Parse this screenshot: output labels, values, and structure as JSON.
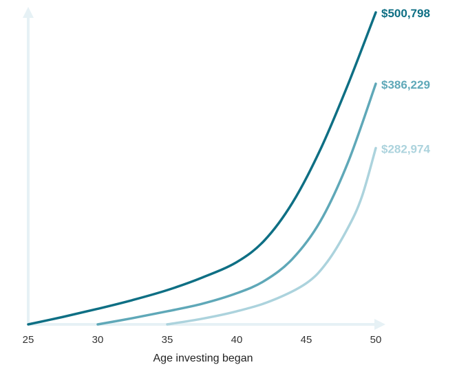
{
  "chart_data": {
    "type": "line",
    "title": "",
    "xlabel": "Age investing began",
    "ylabel": "",
    "xlim": [
      25,
      50
    ],
    "ylim": [
      0,
      500798
    ],
    "x_ticks": [
      "25",
      "30",
      "35",
      "40",
      "45",
      "50"
    ],
    "grid": false,
    "legend": "none",
    "series": [
      {
        "end_label": "$500,798",
        "color": "#0e6f84",
        "x": [
          25,
          27.5,
          30,
          32.5,
          35,
          37.5,
          40,
          42,
          44,
          46,
          48,
          50
        ],
        "values": [
          0,
          12000,
          25000,
          39000,
          55000,
          75000,
          100000,
          135000,
          195000,
          280000,
          385000,
          500798
        ]
      },
      {
        "end_label": "$386,229",
        "color": "#5fa8b8",
        "x": [
          30,
          32.5,
          35,
          37.5,
          40,
          42,
          44,
          46,
          48,
          50
        ],
        "values": [
          0,
          10000,
          21000,
          33000,
          50000,
          70000,
          105000,
          165000,
          260000,
          386229
        ]
      },
      {
        "end_label": "$282,974",
        "color": "#acd3dd",
        "x": [
          35,
          37.5,
          40,
          42.5,
          45,
          46.5,
          48,
          49,
          50
        ],
        "values": [
          0,
          9000,
          21000,
          38000,
          66000,
          100000,
          155000,
          205000,
          282974
        ]
      }
    ]
  },
  "axis_color": "#e6f1f5"
}
